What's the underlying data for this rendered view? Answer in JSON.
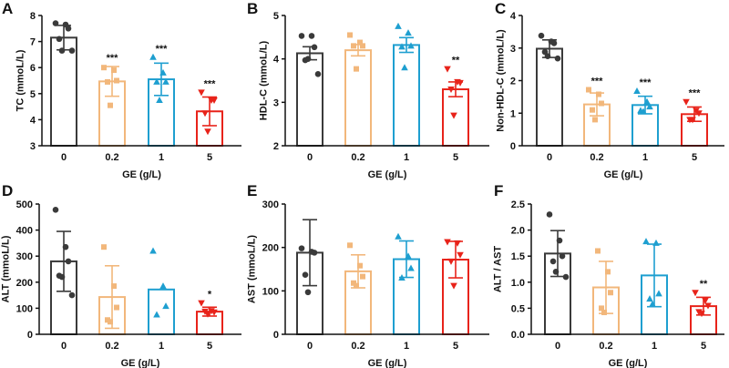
{
  "colors": [
    "#3a3a3a",
    "#f2b77b",
    "#1e9fd0",
    "#e8231a"
  ],
  "markers": [
    "circle",
    "square",
    "triangle-up",
    "triangle-down"
  ],
  "chart_data": [
    {
      "type": "bar",
      "panel": "A",
      "xlabel": "GE (g/L)",
      "ylabel": "TC (mmoL/L)",
      "categories": [
        "0",
        "0.2",
        "1",
        "5"
      ],
      "ylim": [
        3,
        8
      ],
      "yticks": [
        "3",
        "4",
        "5",
        "6",
        "7",
        "8"
      ],
      "ytick_values": [
        3,
        4,
        5,
        6,
        7,
        8
      ],
      "means": [
        7.15,
        5.47,
        5.55,
        4.32
      ],
      "errors": [
        0.47,
        0.57,
        0.62,
        0.55
      ],
      "points": [
        [
          7.7,
          7.65,
          7.5,
          7.1,
          6.65,
          6.65
        ],
        [
          6.0,
          5.9,
          5.5,
          5.45,
          4.55
        ],
        [
          6.4,
          5.8,
          5.45,
          5.45,
          4.75
        ],
        [
          5.05,
          4.75,
          4.75,
          4.25,
          3.55
        ]
      ],
      "significance": [
        "",
        "***",
        "***",
        "***"
      ]
    },
    {
      "type": "bar",
      "panel": "B",
      "xlabel": "GE (g/L)",
      "ylabel": "HDL-C (mmoL/L)",
      "categories": [
        "0",
        "0.2",
        "1",
        "5"
      ],
      "ylim": [
        2,
        5
      ],
      "yticks": [
        "2",
        "3",
        "4",
        "5"
      ],
      "ytick_values": [
        2,
        3,
        4,
        5
      ],
      "means": [
        4.13,
        4.2,
        4.32,
        3.3
      ],
      "errors": [
        0.15,
        0.13,
        0.17,
        0.17
      ],
      "points": [
        [
          4.53,
          4.53,
          4.27,
          3.97,
          4.0,
          3.65
        ],
        [
          4.55,
          4.38,
          4.3,
          4.3,
          3.77
        ],
        [
          4.75,
          4.6,
          4.3,
          4.28,
          3.8
        ],
        [
          3.77,
          3.47,
          3.45,
          3.3,
          2.7
        ]
      ],
      "significance": [
        "",
        "",
        "",
        "**"
      ]
    },
    {
      "type": "bar",
      "panel": "C",
      "xlabel": "GE (g/L)",
      "ylabel": "Non-HDL-C (mmoL/L)",
      "categories": [
        "0",
        "0.2",
        "1",
        "5"
      ],
      "ylim": [
        0,
        4
      ],
      "yticks": [
        "0",
        "1",
        "2",
        "3",
        "4"
      ],
      "ytick_values": [
        0,
        1,
        2,
        3,
        4
      ],
      "means": [
        2.98,
        1.27,
        1.25,
        0.97
      ],
      "errors": [
        0.27,
        0.35,
        0.27,
        0.22
      ],
      "points": [
        [
          3.38,
          3.2,
          3.15,
          2.88,
          2.75,
          2.68
        ],
        [
          1.72,
          1.58,
          1.3,
          1.1,
          0.8
        ],
        [
          1.68,
          1.35,
          1.2,
          1.08,
          1.05
        ],
        [
          1.35,
          1.08,
          1.0,
          0.8,
          0.8
        ]
      ],
      "significance": [
        "",
        "***",
        "***",
        "***"
      ]
    },
    {
      "type": "bar",
      "panel": "D",
      "xlabel": "GE (g/L)",
      "ylabel": "ALT (mmoL/L)",
      "categories": [
        "0",
        "0.2",
        "1",
        "5"
      ],
      "ylim": [
        0,
        500
      ],
      "yticks": [
        "0",
        "100",
        "200",
        "300",
        "400",
        "500"
      ],
      "ytick_values": [
        0,
        100,
        200,
        300,
        400,
        500
      ],
      "means": [
        280,
        143,
        172,
        87
      ],
      "errors": [
        115,
        120,
        0,
        17
      ],
      "points": [
        [
          478,
          335,
          280,
          225,
          220,
          150
        ],
        [
          335,
          185,
          103,
          55,
          48
        ],
        [
          320,
          185,
          108,
          75
        ],
        [
          120,
          90,
          85,
          88,
          78
        ]
      ],
      "significance": [
        "",
        "",
        "",
        "*"
      ]
    },
    {
      "type": "bar",
      "panel": "E",
      "xlabel": "GE (g/L)",
      "ylabel": "AST (mmoL/L)",
      "categories": [
        "0",
        "0.2",
        "1",
        "5"
      ],
      "ylim": [
        0,
        300
      ],
      "yticks": [
        "0",
        "100",
        "200",
        "300"
      ],
      "ytick_values": [
        0,
        100,
        200,
        300
      ],
      "means": [
        188,
        145,
        173,
        172
      ],
      "errors": [
        76,
        38,
        42,
        42
      ],
      "points": [
        [
          198,
          190,
          188,
          137,
          97
        ],
        [
          205,
          158,
          133,
          118,
          112
        ],
        [
          225,
          180,
          152,
          130
        ],
        [
          213,
          210,
          183,
          168,
          112
        ]
      ],
      "significance": [
        "",
        "",
        "",
        ""
      ]
    },
    {
      "type": "bar",
      "panel": "F",
      "xlabel": "GE (g/L)",
      "ylabel": "ALT / AST",
      "categories": [
        "0",
        "0.2",
        "1",
        "5"
      ],
      "ylim": [
        0,
        2.5
      ],
      "yticks": [
        "0.0",
        "0.5",
        "1.0",
        "1.5",
        "2.0",
        "2.5"
      ],
      "ytick_values": [
        0,
        0.5,
        1,
        1.5,
        2,
        2.5
      ],
      "means": [
        1.55,
        0.9,
        1.13,
        0.54
      ],
      "errors": [
        0.44,
        0.5,
        0.6,
        0.17
      ],
      "points": [
        [
          2.3,
          1.8,
          1.5,
          1.4,
          1.2,
          1.1
        ],
        [
          1.6,
          1.2,
          0.8,
          0.5,
          0.42
        ],
        [
          1.78,
          1.75,
          0.78,
          0.68,
          0.58
        ],
        [
          0.8,
          0.65,
          0.55,
          0.43,
          0.4
        ]
      ],
      "significance": [
        "",
        "",
        "",
        "**"
      ]
    }
  ]
}
